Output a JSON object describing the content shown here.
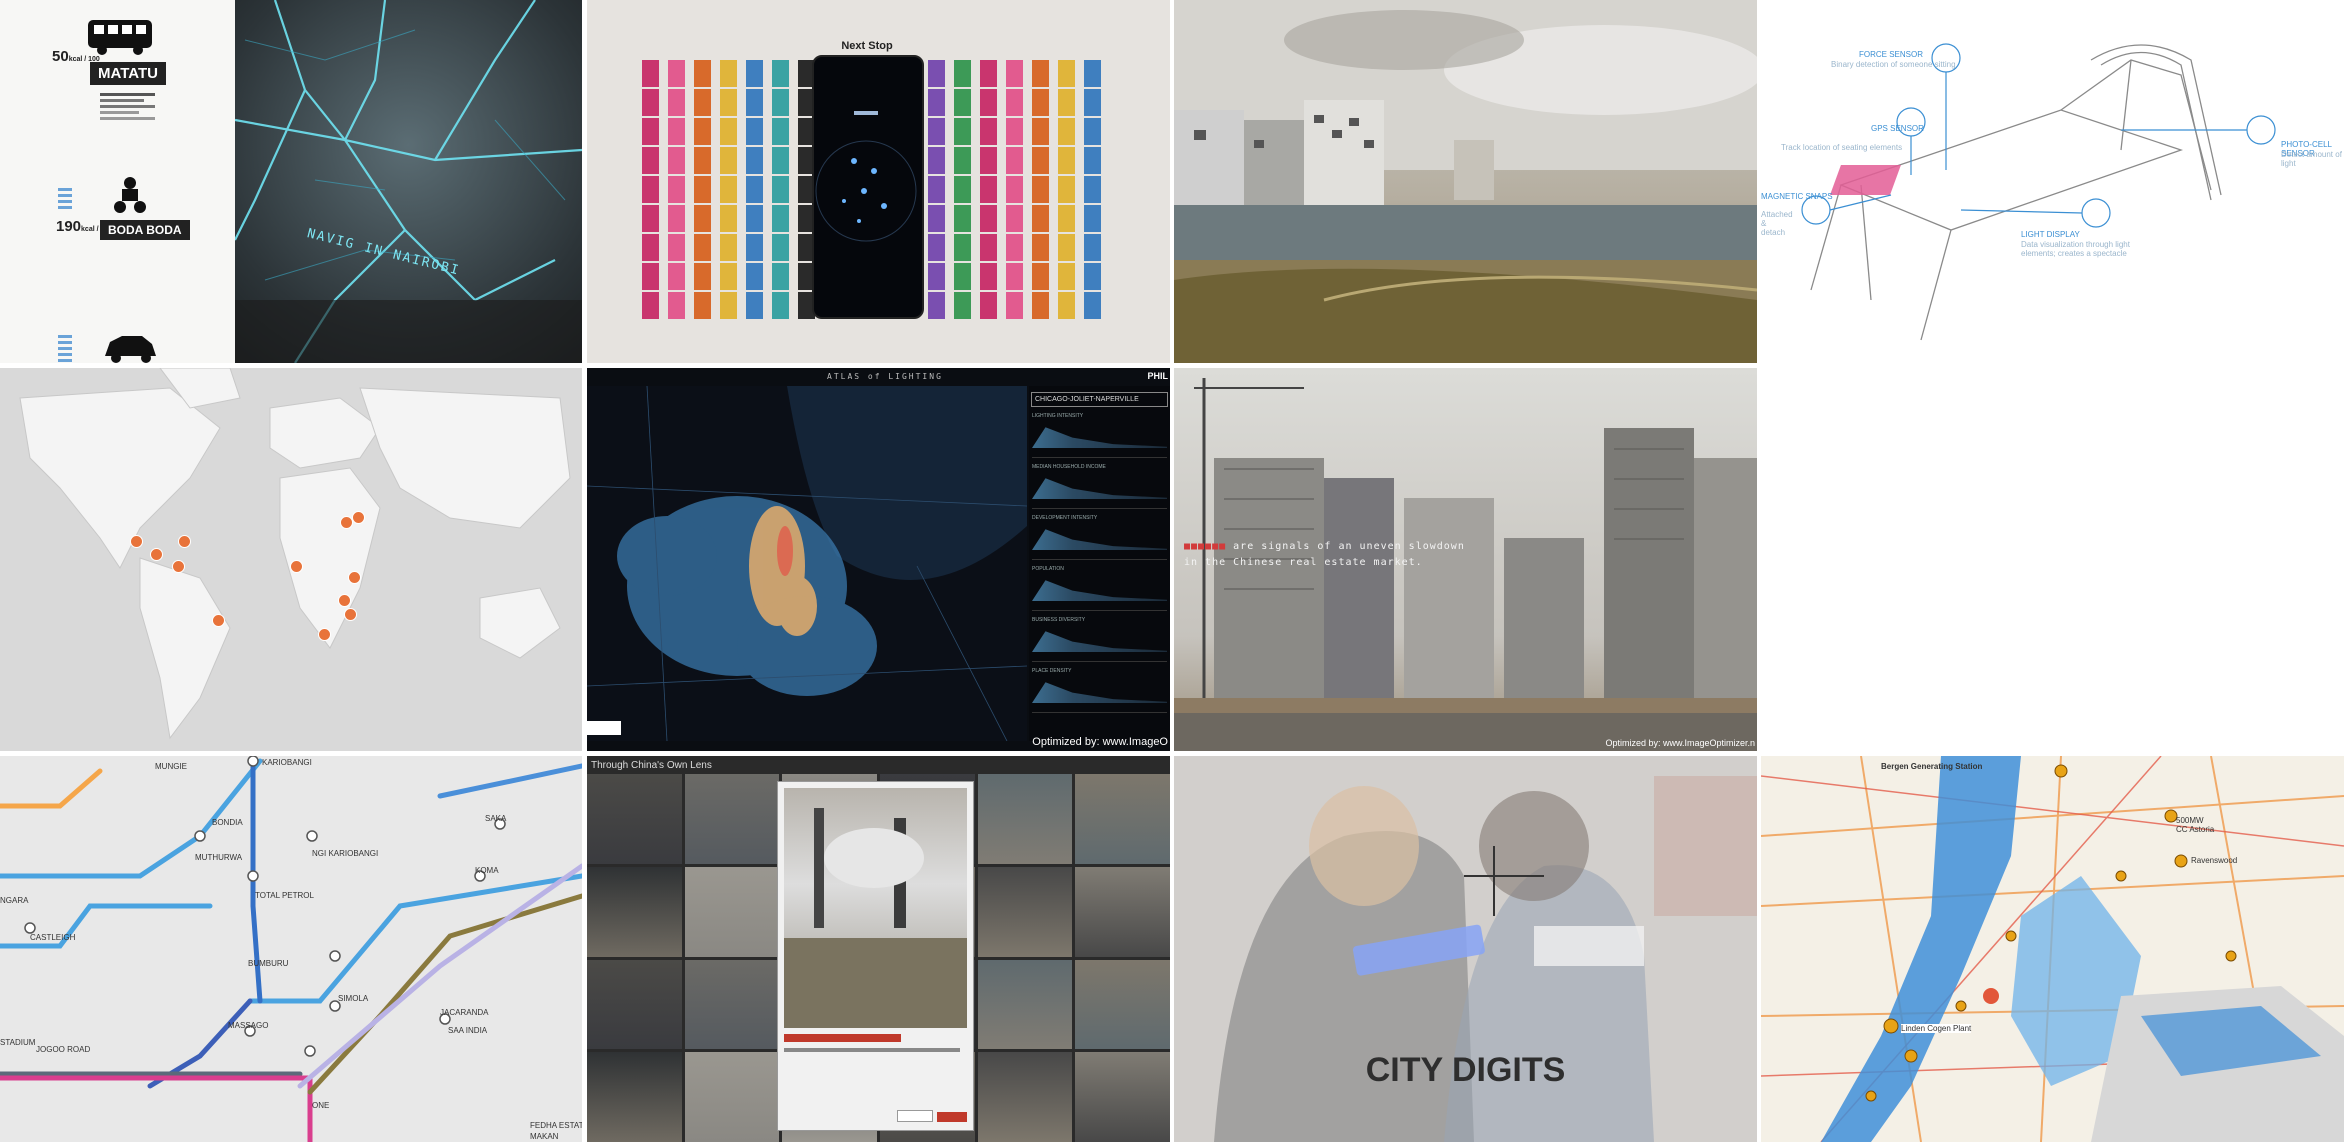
{
  "tiles": {
    "matatu": {
      "stat1": "50",
      "stat1_unit": "kcal / 100",
      "label1": "MATATU",
      "stat2": "190",
      "stat2_unit": "kcal / 100",
      "label2": "BODA BODA",
      "map_text": "NAVIG IN NAIROBI"
    },
    "next_stop": {
      "title": "Next Stop"
    },
    "sensor": {
      "labels": [
        "FORCE SENSOR",
        "GPS SENSOR",
        "PHOTO-CELL SENSOR",
        "MAGNETIC SNAPS",
        "LIGHT DISPLAY"
      ],
      "captions": [
        "Binary detection of someone sitting",
        "Track location of seating elements",
        "Detect amount of light",
        "Attached & detach",
        "Data visualization through light elements; creates a spectacle"
      ]
    },
    "atlas": {
      "header": "ATLAS of LIGHTING",
      "brand": "PHIL",
      "region": "CHICAGO-JOLIET-NAPERVILLE",
      "panel_labels": [
        "LIGHTING INTENSITY",
        "MEDIAN HOUSEHOLD INCOME",
        "DEVELOPMENT INTENSITY",
        "POPULATION",
        "BUSINESS DIVERSITY",
        "PLACE DENSITY"
      ],
      "optimized": "Optimized by: www.ImageO"
    },
    "ghost": {
      "caption_line1": "are signals of an uneven slowdown",
      "caption_line2": "in the Chinese real estate market.",
      "optimized": "Optimized by: www.ImageOptimizer.n"
    },
    "transit": {
      "stops": [
        "KARIOBANGI",
        "BONDIA",
        "MUTHURWA",
        "TOTAL PETROL",
        "SAKA",
        "KOMA",
        "NGI KARIOBANGI",
        "CASTLEIGH",
        "JOGOO ROAD",
        "MASSAGO",
        "BUMBURU",
        "SIMOLA",
        "SAA INDIA",
        "JACARANDA",
        "ONE",
        "FEDHA ESTATE",
        "MAKAN",
        "STADIUM",
        "NGARA",
        "MUNGIE"
      ]
    },
    "china": {
      "title": "Through China's Own Lens"
    },
    "city_digits": {
      "title": "CITY DIGITS"
    },
    "nyc": {
      "labels": [
        "Bergen Generating Station",
        "500MW CC Astoria",
        "Ravenswood",
        "Linden Cogen Plant"
      ]
    }
  }
}
